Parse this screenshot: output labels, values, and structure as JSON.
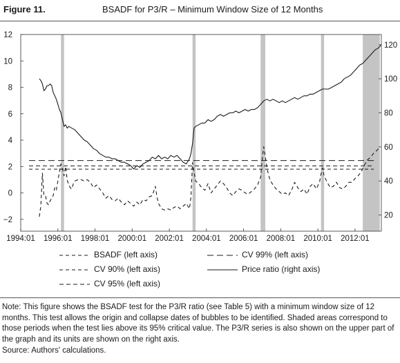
{
  "figure": {
    "label": "Figure 11.",
    "title": "BSADF for P3/R – Minimum Window Size of 12 Months"
  },
  "chart_data": {
    "type": "line",
    "x_ticks": [
      "1994:01",
      "1996:01",
      "1998:01",
      "2000:01",
      "2002:01",
      "2004:01",
      "2006:01",
      "2008:01",
      "2010:01",
      "2012:01"
    ],
    "x_range": [
      "1994:01",
      "2013:06"
    ],
    "left_axis": {
      "ticks": [
        -2,
        0,
        2,
        4,
        6,
        8,
        10,
        12
      ],
      "range": [
        -2.9,
        12
      ]
    },
    "right_axis": {
      "ticks": [
        20,
        40,
        60,
        80,
        100,
        120
      ],
      "range": [
        10.5,
        126
      ]
    },
    "shaded_periods": [
      {
        "start": "1996:03",
        "end": "1996:05"
      },
      {
        "start": "2003:04",
        "end": "2003:06"
      },
      {
        "start": "2006:12",
        "end": "2007:03"
      },
      {
        "start": "2010:03",
        "end": "2010:05"
      },
      {
        "start": "2012:06",
        "end": "2013:05"
      }
    ],
    "critical_values": [
      {
        "name": "CV 99% (left axis)",
        "value": 2.45
      },
      {
        "name": "CV 95% (left axis)",
        "value": 2.05
      },
      {
        "name": "CV 90% (left axis)",
        "value": 1.8
      }
    ],
    "series": [
      {
        "name": "BSADF (left axis)",
        "axis": "left",
        "points": [
          [
            "1995:01",
            -1.8
          ],
          [
            "1995:02",
            -1.0
          ],
          [
            "1995:03",
            1.5
          ],
          [
            "1995:04",
            -0.2
          ],
          [
            "1995:05",
            -0.2
          ],
          [
            "1995:06",
            -0.8
          ],
          [
            "1995:07",
            -0.9
          ],
          [
            "1995:08",
            -0.6
          ],
          [
            "1995:09",
            -0.4
          ],
          [
            "1995:10",
            -0.2
          ],
          [
            "1995:11",
            0.4
          ],
          [
            "1995:12",
            0.2
          ],
          [
            "1996:01",
            0.9
          ],
          [
            "1996:02",
            1.6
          ],
          [
            "1996:03",
            2.2
          ],
          [
            "1996:04",
            1.8
          ],
          [
            "1996:05",
            1.3
          ],
          [
            "1996:06",
            2.0
          ],
          [
            "1996:07",
            1.0
          ],
          [
            "1996:08",
            0.6
          ],
          [
            "1996:09",
            0.4
          ],
          [
            "1996:10",
            0.3
          ],
          [
            "1996:11",
            0.7
          ],
          [
            "1996:12",
            0.9
          ],
          [
            "1997:02",
            1.0
          ],
          [
            "1997:04",
            1.0
          ],
          [
            "1997:06",
            0.9
          ],
          [
            "1997:08",
            1.0
          ],
          [
            "1997:10",
            0.8
          ],
          [
            "1997:12",
            0.4
          ],
          [
            "1998:02",
            0.6
          ],
          [
            "1998:04",
            0.3
          ],
          [
            "1998:06",
            0.0
          ],
          [
            "1998:08",
            -0.4
          ],
          [
            "1998:10",
            -0.2
          ],
          [
            "1998:12",
            -0.5
          ],
          [
            "1999:02",
            -0.6
          ],
          [
            "1999:04",
            -0.4
          ],
          [
            "1999:06",
            -0.7
          ],
          [
            "1999:08",
            -0.9
          ],
          [
            "1999:10",
            -0.6
          ],
          [
            "1999:12",
            -0.8
          ],
          [
            "2000:02",
            -1.0
          ],
          [
            "2000:04",
            -0.7
          ],
          [
            "2000:06",
            -0.9
          ],
          [
            "2000:08",
            -0.5
          ],
          [
            "2000:10",
            -0.6
          ],
          [
            "2000:12",
            -0.3
          ],
          [
            "2001:02",
            -0.2
          ],
          [
            "2001:04",
            0.5
          ],
          [
            "2001:05",
            -0.3
          ],
          [
            "2001:06",
            -0.8
          ],
          [
            "2001:08",
            -1.2
          ],
          [
            "2001:10",
            -1.3
          ],
          [
            "2001:12",
            -1.2
          ],
          [
            "2002:02",
            -1.3
          ],
          [
            "2002:04",
            -1.1
          ],
          [
            "2002:06",
            -1.0
          ],
          [
            "2002:08",
            -1.2
          ],
          [
            "2002:10",
            -1.0
          ],
          [
            "2002:12",
            -0.8
          ],
          [
            "2003:02",
            -1.2
          ],
          [
            "2003:03",
            -0.3
          ],
          [
            "2003:04",
            2.3
          ],
          [
            "2003:05",
            1.6
          ],
          [
            "2003:06",
            0.9
          ],
          [
            "2003:08",
            0.7
          ],
          [
            "2003:10",
            0.4
          ],
          [
            "2003:12",
            0.2
          ],
          [
            "2004:02",
            0.7
          ],
          [
            "2004:04",
            0.0
          ],
          [
            "2004:06",
            0.3
          ],
          [
            "2004:08",
            0.6
          ],
          [
            "2004:10",
            0.9
          ],
          [
            "2004:12",
            0.7
          ],
          [
            "2005:02",
            0.4
          ],
          [
            "2005:04",
            0.0
          ],
          [
            "2005:06",
            -0.2
          ],
          [
            "2005:08",
            0.1
          ],
          [
            "2005:10",
            0.3
          ],
          [
            "2005:12",
            0.2
          ],
          [
            "2006:02",
            0.0
          ],
          [
            "2006:04",
            -0.1
          ],
          [
            "2006:06",
            0.1
          ],
          [
            "2006:08",
            0.3
          ],
          [
            "2006:10",
            0.6
          ],
          [
            "2006:12",
            1.2
          ],
          [
            "2007:01",
            2.5
          ],
          [
            "2007:02",
            3.5
          ],
          [
            "2007:03",
            2.8
          ],
          [
            "2007:04",
            1.9
          ],
          [
            "2007:06",
            1.0
          ],
          [
            "2007:08",
            0.6
          ],
          [
            "2007:10",
            0.3
          ],
          [
            "2007:12",
            0.1
          ],
          [
            "2008:02",
            -0.1
          ],
          [
            "2008:04",
            0.0
          ],
          [
            "2008:06",
            -0.2
          ],
          [
            "2008:08",
            0.2
          ],
          [
            "2008:10",
            0.8
          ],
          [
            "2008:12",
            0.4
          ],
          [
            "2009:02",
            0.1
          ],
          [
            "2009:04",
            0.3
          ],
          [
            "2009:06",
            -0.1
          ],
          [
            "2009:08",
            0.5
          ],
          [
            "2009:10",
            0.7
          ],
          [
            "2009:12",
            0.3
          ],
          [
            "2010:02",
            0.8
          ],
          [
            "2010:03",
            1.4
          ],
          [
            "2010:04",
            1.9
          ],
          [
            "2010:05",
            1.3
          ],
          [
            "2010:07",
            0.8
          ],
          [
            "2010:09",
            0.4
          ],
          [
            "2010:11",
            0.5
          ],
          [
            "2011:01",
            0.8
          ],
          [
            "2011:03",
            0.4
          ],
          [
            "2011:05",
            0.3
          ],
          [
            "2011:07",
            0.5
          ],
          [
            "2011:09",
            0.8
          ],
          [
            "2011:11",
            0.8
          ],
          [
            "2012:01",
            1.1
          ],
          [
            "2012:03",
            1.3
          ],
          [
            "2012:05",
            1.6
          ],
          [
            "2012:07",
            2.1
          ],
          [
            "2012:09",
            2.5
          ],
          [
            "2012:11",
            2.7
          ],
          [
            "2013:01",
            3.0
          ],
          [
            "2013:03",
            3.2
          ],
          [
            "2013:05",
            3.5
          ]
        ]
      },
      {
        "name": "Price ratio (right axis)",
        "axis": "right",
        "points": [
          [
            "1995:01",
            100
          ],
          [
            "1995:02",
            99
          ],
          [
            "1995:03",
            97
          ],
          [
            "1995:04",
            93
          ],
          [
            "1995:05",
            94
          ],
          [
            "1995:06",
            96
          ],
          [
            "1995:07",
            96
          ],
          [
            "1995:08",
            97
          ],
          [
            "1995:09",
            96
          ],
          [
            "1995:10",
            92
          ],
          [
            "1995:11",
            90
          ],
          [
            "1995:12",
            88
          ],
          [
            "1996:01",
            85
          ],
          [
            "1996:02",
            82
          ],
          [
            "1996:03",
            80
          ],
          [
            "1996:04",
            76
          ],
          [
            "1996:05",
            72
          ],
          [
            "1996:06",
            73
          ],
          [
            "1996:07",
            71
          ],
          [
            "1996:08",
            72
          ],
          [
            "1996:10",
            71
          ],
          [
            "1996:12",
            70
          ],
          [
            "1997:02",
            68
          ],
          [
            "1997:04",
            66
          ],
          [
            "1997:06",
            64
          ],
          [
            "1997:08",
            63
          ],
          [
            "1997:10",
            61
          ],
          [
            "1997:12",
            59
          ],
          [
            "1998:02",
            58
          ],
          [
            "1998:04",
            56
          ],
          [
            "1998:06",
            55
          ],
          [
            "1998:08",
            54
          ],
          [
            "1998:10",
            54
          ],
          [
            "1998:12",
            53
          ],
          [
            "1999:02",
            53
          ],
          [
            "1999:04",
            52
          ],
          [
            "1999:06",
            51
          ],
          [
            "1999:08",
            51
          ],
          [
            "1999:10",
            50
          ],
          [
            "1999:12",
            49
          ],
          [
            "2000:02",
            47
          ],
          [
            "2000:04",
            49
          ],
          [
            "2000:06",
            48
          ],
          [
            "2000:08",
            50
          ],
          [
            "2000:10",
            51
          ],
          [
            "2000:12",
            52
          ],
          [
            "2001:02",
            54
          ],
          [
            "2001:04",
            53
          ],
          [
            "2001:06",
            55
          ],
          [
            "2001:08",
            53
          ],
          [
            "2001:10",
            54
          ],
          [
            "2001:12",
            53
          ],
          [
            "2002:02",
            55
          ],
          [
            "2002:04",
            54
          ],
          [
            "2002:06",
            55
          ],
          [
            "2002:08",
            53
          ],
          [
            "2002:10",
            51
          ],
          [
            "2002:12",
            50
          ],
          [
            "2003:02",
            53
          ],
          [
            "2003:03",
            56
          ],
          [
            "2003:04",
            62
          ],
          [
            "2003:05",
            71
          ],
          [
            "2003:06",
            72
          ],
          [
            "2003:08",
            73
          ],
          [
            "2003:10",
            74
          ],
          [
            "2003:12",
            74
          ],
          [
            "2004:02",
            76
          ],
          [
            "2004:04",
            75
          ],
          [
            "2004:06",
            76
          ],
          [
            "2004:08",
            78
          ],
          [
            "2004:10",
            79
          ],
          [
            "2004:12",
            78
          ],
          [
            "2005:02",
            79
          ],
          [
            "2005:04",
            80
          ],
          [
            "2005:06",
            80
          ],
          [
            "2005:08",
            81
          ],
          [
            "2005:10",
            80
          ],
          [
            "2005:12",
            81
          ],
          [
            "2006:02",
            82
          ],
          [
            "2006:04",
            81
          ],
          [
            "2006:06",
            82
          ],
          [
            "2006:08",
            82
          ],
          [
            "2006:10",
            83
          ],
          [
            "2006:12",
            85
          ],
          [
            "2007:02",
            87
          ],
          [
            "2007:04",
            88
          ],
          [
            "2007:06",
            87
          ],
          [
            "2007:08",
            88
          ],
          [
            "2007:10",
            87
          ],
          [
            "2007:12",
            86
          ],
          [
            "2008:02",
            87
          ],
          [
            "2008:04",
            86
          ],
          [
            "2008:06",
            87
          ],
          [
            "2008:08",
            88
          ],
          [
            "2008:10",
            89
          ],
          [
            "2008:12",
            88
          ],
          [
            "2009:02",
            89
          ],
          [
            "2009:04",
            90
          ],
          [
            "2009:06",
            90
          ],
          [
            "2009:08",
            91
          ],
          [
            "2009:10",
            91
          ],
          [
            "2009:12",
            92
          ],
          [
            "2010:02",
            93
          ],
          [
            "2010:04",
            94
          ],
          [
            "2010:06",
            94
          ],
          [
            "2010:08",
            94
          ],
          [
            "2010:10",
            95
          ],
          [
            "2010:12",
            96
          ],
          [
            "2011:02",
            97
          ],
          [
            "2011:04",
            98
          ],
          [
            "2011:06",
            100
          ],
          [
            "2011:08",
            101
          ],
          [
            "2011:10",
            102
          ],
          [
            "2011:12",
            104
          ],
          [
            "2012:02",
            106
          ],
          [
            "2012:04",
            108
          ],
          [
            "2012:06",
            109
          ],
          [
            "2012:08",
            111
          ],
          [
            "2012:10",
            113
          ],
          [
            "2012:12",
            115
          ],
          [
            "2013:02",
            117
          ],
          [
            "2013:04",
            118
          ],
          [
            "2013:06",
            120
          ]
        ]
      }
    ]
  },
  "legend": {
    "items": [
      {
        "label": "BSADF (left axis)",
        "style": "short-dash"
      },
      {
        "label": "CV 99% (left axis)",
        "style": "long-dash"
      },
      {
        "label": "CV 90% (left axis)",
        "style": "short-dash"
      },
      {
        "label": "Price ratio (right axis)",
        "style": "solid"
      },
      {
        "label": "CV 95% (left axis)",
        "style": "short-dash"
      }
    ]
  },
  "note": "Note: This figure shows the BSADF test for the P3/R ratio (see Table 5) with a minimum window size of 12 months. This test allows the origin and collapse dates of bubbles to be identified. Shaded areas correspond to those periods when the test lies above its 95% critical value. The P3/R series is also shown on the upper part of the graph and its units are shown on the right axis.",
  "source": "Source: Authors' calculations."
}
